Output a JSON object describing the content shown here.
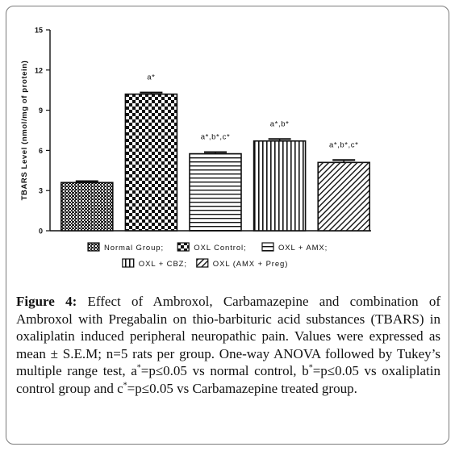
{
  "chart_data": {
    "type": "bar",
    "ylabel": "TBARS Level (nmol/mg of protein)",
    "ylim": [
      0,
      15
    ],
    "yticks": [
      "0",
      "3",
      "6",
      "9",
      "12",
      "15"
    ],
    "grid": false,
    "legend_position": "bottom",
    "categories": [
      "Normal Group",
      "OXL Control",
      "OXL + AMX",
      "OXL + CBZ",
      "OXL (AMX + Preg)"
    ],
    "values": [
      3.6,
      10.2,
      5.75,
      6.7,
      5.1
    ],
    "errors": [
      0.1,
      0.12,
      0.12,
      0.15,
      0.18
    ],
    "annotations": [
      "",
      "a*",
      "a*,b*,c*",
      "a*,b*",
      "a*,b*,c*"
    ],
    "patterns": [
      "crosshatch-dense",
      "checker",
      "horizontal-lines",
      "vertical-lines",
      "diagonal-lines"
    ],
    "legend_items": [
      "Normal Group;",
      "OXL Control;",
      "OXL + AMX;",
      "OXL + CBZ;",
      "OXL (AMX + Preg)"
    ]
  },
  "caption": {
    "label": "Figure 4:",
    "text_1": " Effect of Ambroxol, Carbamazepine and combination of Ambroxol with Pregabalin on thio-barbituric acid substances (TBARS) in oxaliplatin induced peripheral neuropathic pain. Values were expressed as mean ± S.E.M; n=5 rats per group. One-way ANOVA followed by Tukey’s multiple range test, a",
    "sup_1": "*",
    "text_2": "=p≤0.05 vs normal control, b",
    "sup_2": "*",
    "text_3": "=p≤0.05 vs oxaliplatin control group and c",
    "sup_3": "*",
    "text_4": "=p≤0.05 vs Carbamazepine treated group."
  }
}
